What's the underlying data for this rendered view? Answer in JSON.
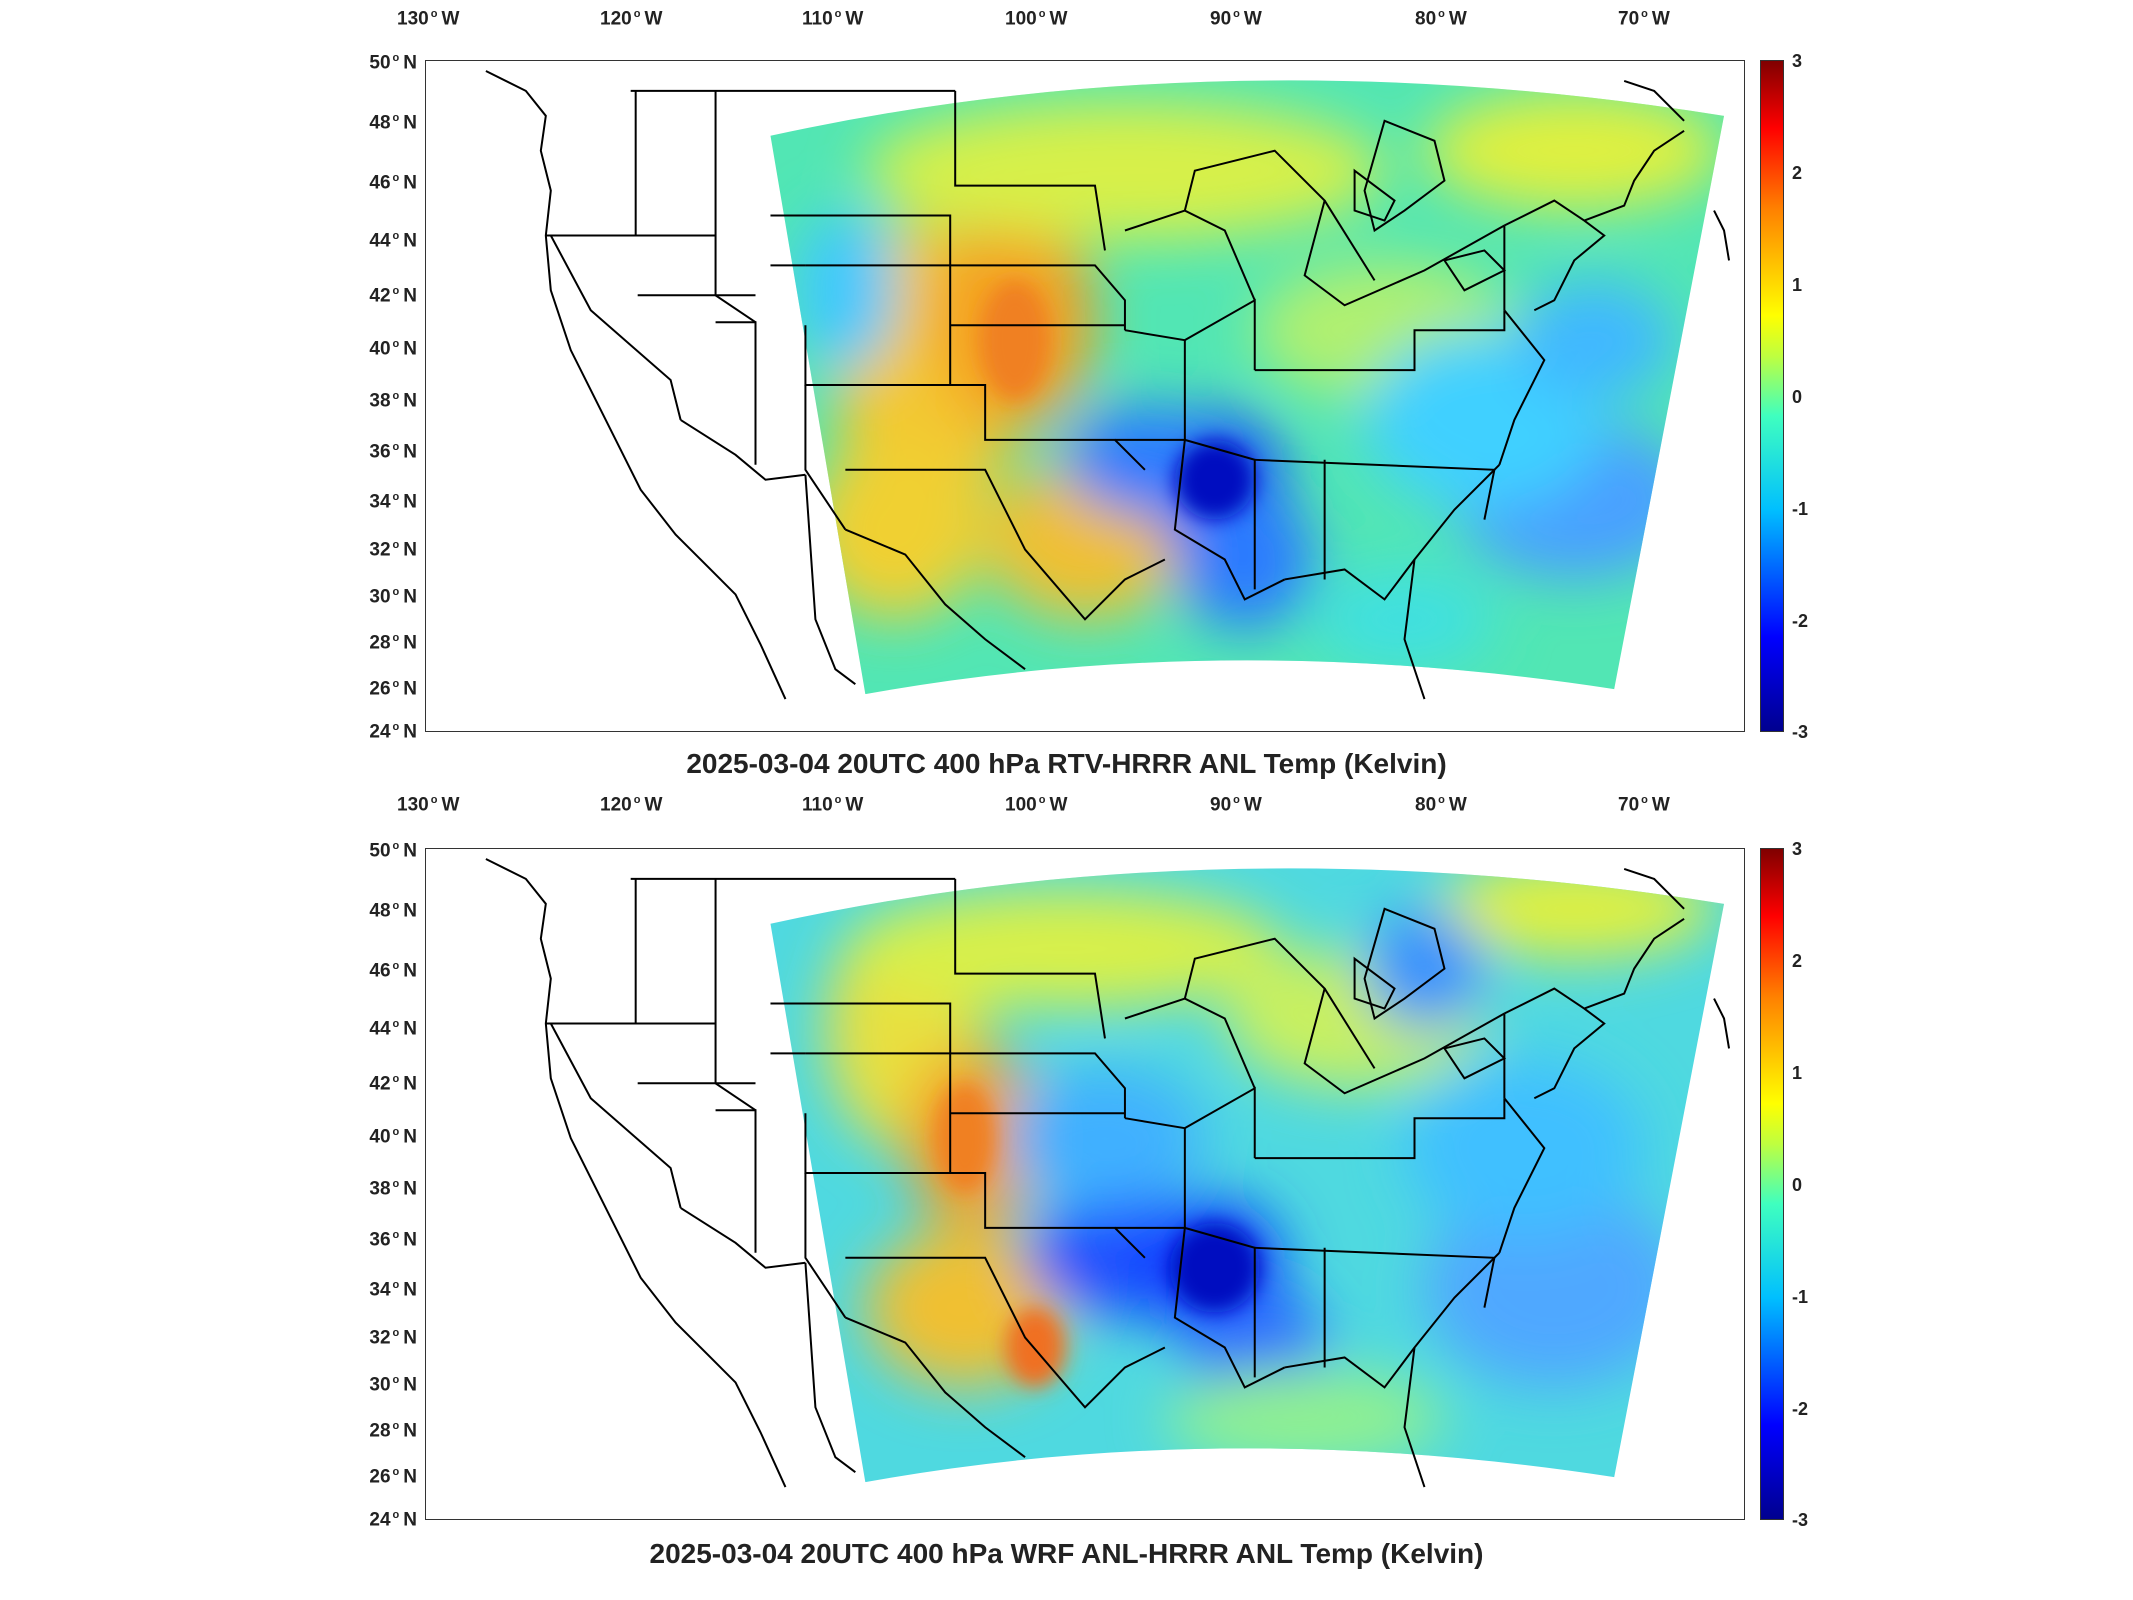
{
  "lon_ticks": [
    "130",
    "120",
    "110",
    "100",
    "90",
    "80",
    "70"
  ],
  "lon_suffix": "W",
  "lat_ticks": [
    "50",
    "48",
    "46",
    "44",
    "42",
    "40",
    "38",
    "36",
    "34",
    "32",
    "30",
    "28",
    "26",
    "24"
  ],
  "lat_suffix": "N",
  "colorbar": {
    "ticks": [
      "3",
      "2",
      "1",
      "0",
      "-1",
      "-2",
      "-3"
    ],
    "range": [
      -3,
      3
    ],
    "colormap": "jet",
    "colors": [
      "#00008f",
      "#0000ff",
      "#00bfff",
      "#3fffbf",
      "#bfff3f",
      "#ffff00",
      "#ff8000",
      "#ff0000",
      "#800000"
    ]
  },
  "panels": [
    {
      "title": "2025-03-04 20UTC 400 hPa RTV-HRRR ANL Temp (Kelvin)",
      "field": "temperature difference",
      "units": "Kelvin"
    },
    {
      "title": "2025-03-04 20UTC 400 hPa WRF ANL-HRRR ANL Temp (Kelvin)",
      "field": "temperature difference",
      "units": "Kelvin"
    }
  ]
}
